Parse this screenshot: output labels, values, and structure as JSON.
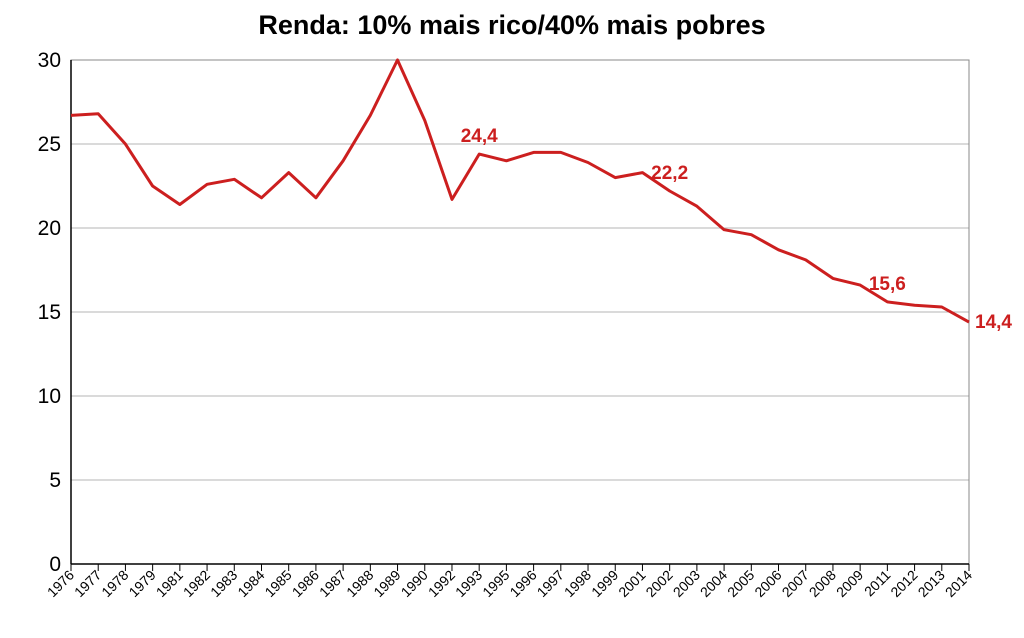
{
  "chart_data": {
    "type": "line",
    "title": "Renda: 10% mais rico/40% mais pobres",
    "xlabel": "",
    "ylabel": "",
    "ylim": [
      0,
      30
    ],
    "yticks": [
      0,
      5,
      10,
      15,
      20,
      25,
      30
    ],
    "grid": "horizontal",
    "legend": "none",
    "line_color": "#cc1f1f",
    "categories": [
      "1976",
      "1977",
      "1978",
      "1979",
      "1981",
      "1982",
      "1983",
      "1984",
      "1985",
      "1986",
      "1987",
      "1988",
      "1989",
      "1990",
      "1992",
      "1993",
      "1995",
      "1996",
      "1997",
      "1998",
      "1999",
      "2001",
      "2002",
      "2003",
      "2004",
      "2005",
      "2006",
      "2007",
      "2008",
      "2009",
      "2011",
      "2012",
      "2013",
      "2014"
    ],
    "series": [
      {
        "values": [
          26.7,
          26.8,
          25.0,
          22.5,
          21.4,
          22.6,
          22.9,
          21.8,
          23.3,
          21.8,
          24.0,
          26.7,
          30.0,
          26.4,
          21.7,
          24.4,
          24.0,
          24.5,
          24.5,
          23.9,
          23.0,
          23.3,
          22.2,
          21.3,
          19.9,
          19.6,
          18.7,
          18.1,
          17.0,
          16.6,
          15.6,
          15.4,
          15.3,
          14.4
        ]
      }
    ],
    "data_labels": [
      {
        "category": "1993",
        "text": "24,4"
      },
      {
        "category": "2002",
        "text": "22,2"
      },
      {
        "category": "2011",
        "text": "15,6"
      },
      {
        "category": "2014",
        "text": "14,4"
      }
    ]
  }
}
